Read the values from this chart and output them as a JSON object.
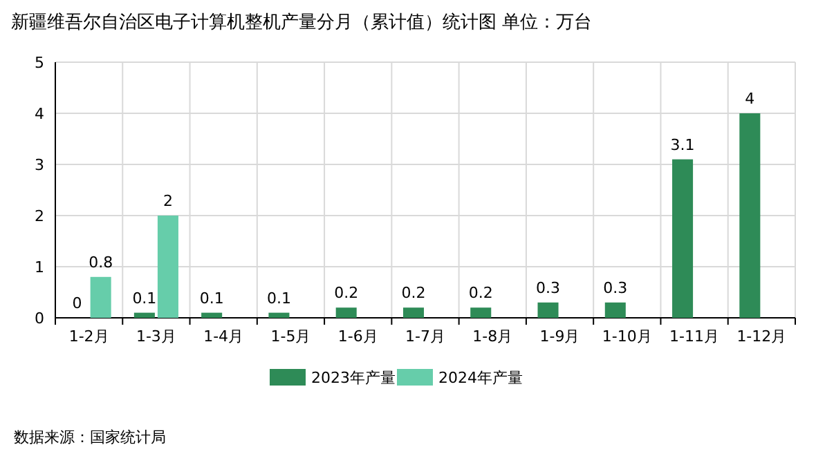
{
  "chart_data": {
    "type": "bar",
    "title": "新疆维吾尔自治区电子计算机整机产量分月（累计值）统计图 单位：万台",
    "categories": [
      "1-2月",
      "1-3月",
      "1-4月",
      "1-5月",
      "1-6月",
      "1-7月",
      "1-8月",
      "1-9月",
      "1-10月",
      "1-11月",
      "1-12月"
    ],
    "series": [
      {
        "name": "2023年产量",
        "color": "#2e8b57",
        "values": [
          0,
          0.1,
          0.1,
          0.1,
          0.2,
          0.2,
          0.2,
          0.3,
          0.3,
          3.1,
          4
        ]
      },
      {
        "name": "2024年产量",
        "color": "#66cdaa",
        "values": [
          0.8,
          2,
          null,
          null,
          null,
          null,
          null,
          null,
          null,
          null,
          null
        ]
      }
    ],
    "ylim": [
      0,
      5
    ],
    "yticks": [
      0,
      1,
      2,
      3,
      4,
      5
    ],
    "grid": true,
    "legend": "bottom",
    "data_labels": true,
    "annotations": [
      "数据来源：国家统计局"
    ]
  }
}
